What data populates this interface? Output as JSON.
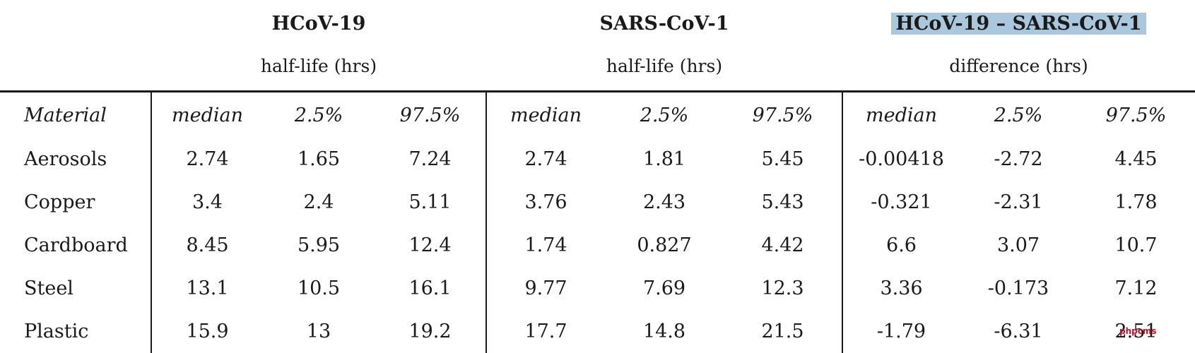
{
  "groups": [
    {
      "title": "HCoV-19",
      "subtitle": "half-life (hrs)",
      "highlighted": false
    },
    {
      "title": "SARS-CoV-1",
      "subtitle": "half-life (hrs)",
      "highlighted": false
    },
    {
      "title": "HCoV-19 – SARS-CoV-1",
      "subtitle": "difference (hrs)",
      "highlighted": true
    }
  ],
  "highlight_color": "#a9c8de",
  "columns": [
    "Material",
    "median",
    "2.5%",
    "97.5%",
    "median",
    "2.5%",
    "97.5%",
    "median",
    "2.5%",
    "97.5%"
  ],
  "rows": [
    [
      "Aerosols",
      "2.74",
      "1.65",
      "7.24",
      "2.74",
      "1.81",
      "5.45",
      "-0.00418",
      "-2.72",
      "4.45"
    ],
    [
      "Copper",
      "3.4",
      "2.4",
      "5.11",
      "3.76",
      "2.43",
      "5.43",
      "-0.321",
      "-2.31",
      "1.78"
    ],
    [
      "Cardboard",
      "8.45",
      "5.95",
      "12.4",
      "1.74",
      "0.827",
      "4.42",
      "6.6",
      "3.07",
      "10.7"
    ],
    [
      "Steel",
      "13.1",
      "10.5",
      "16.1",
      "9.77",
      "7.69",
      "12.3",
      "3.36",
      "-0.173",
      "7.12"
    ],
    [
      "Plastic",
      "15.9",
      "13",
      "19.2",
      "17.7",
      "14.8",
      "21.5",
      "-1.79",
      "-6.31",
      "2.51"
    ]
  ],
  "watermark": "phpcms"
}
